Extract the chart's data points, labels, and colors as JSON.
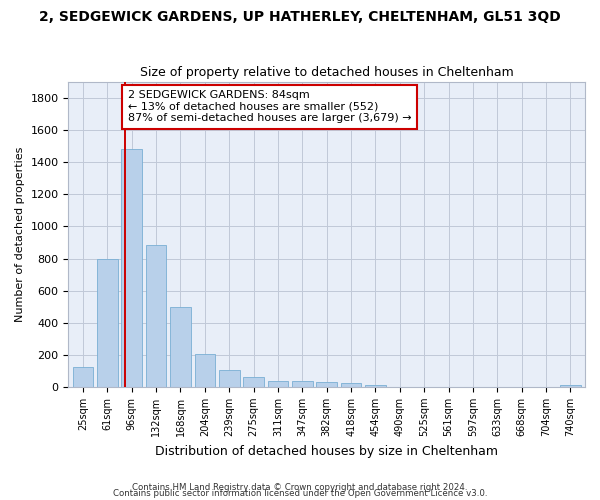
{
  "title": "2, SEDGEWICK GARDENS, UP HATHERLEY, CHELTENHAM, GL51 3QD",
  "subtitle": "Size of property relative to detached houses in Cheltenham",
  "xlabel": "Distribution of detached houses by size in Cheltenham",
  "ylabel": "Number of detached properties",
  "categories": [
    "25sqm",
    "61sqm",
    "96sqm",
    "132sqm",
    "168sqm",
    "204sqm",
    "239sqm",
    "275sqm",
    "311sqm",
    "347sqm",
    "382sqm",
    "418sqm",
    "454sqm",
    "490sqm",
    "525sqm",
    "561sqm",
    "597sqm",
    "633sqm",
    "668sqm",
    "704sqm",
    "740sqm"
  ],
  "values": [
    125,
    795,
    1480,
    885,
    500,
    205,
    105,
    65,
    40,
    35,
    30,
    25,
    15,
    0,
    0,
    0,
    0,
    0,
    0,
    0,
    15
  ],
  "bar_color": "#b8d0ea",
  "bar_edge_color": "#7aafd4",
  "vline_x": 1.72,
  "vline_color": "#cc0000",
  "annotation_text": "2 SEDGEWICK GARDENS: 84sqm\n← 13% of detached houses are smaller (552)\n87% of semi-detached houses are larger (3,679) →",
  "annotation_box_color": "#cc0000",
  "ylim": [
    0,
    1900
  ],
  "yticks": [
    0,
    200,
    400,
    600,
    800,
    1000,
    1200,
    1400,
    1600,
    1800
  ],
  "footer1": "Contains HM Land Registry data © Crown copyright and database right 2024.",
  "footer2": "Contains public sector information licensed under the Open Government Licence v3.0.",
  "bg_color": "#ffffff",
  "plot_bg_color": "#e8eef8",
  "title_fontsize": 10,
  "subtitle_fontsize": 9,
  "annotation_fontsize": 8
}
